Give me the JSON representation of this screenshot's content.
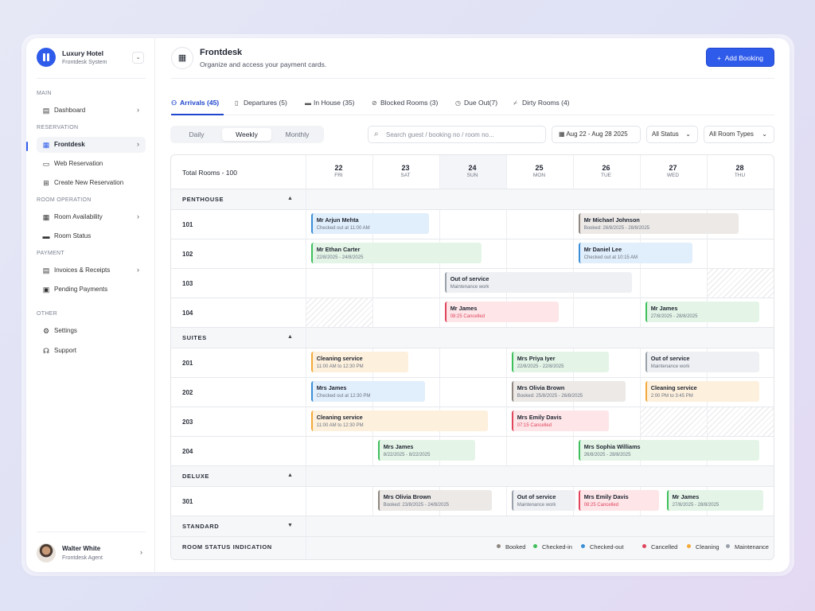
{
  "brand": {
    "name": "Luxury Hotel",
    "subtitle": "Frontdesk System"
  },
  "sidebar": {
    "sections": [
      "MAIN",
      "RESERVATION",
      "ROOM OPERATION",
      "PAYMENT",
      "OTHER"
    ],
    "items": [
      {
        "label": "Dashboard",
        "icon": "dashboard-icon"
      },
      {
        "label": "Frontdesk",
        "icon": "calendar-icon",
        "active": true
      },
      {
        "label": "Web Reservation",
        "icon": "monitor-icon"
      },
      {
        "label": "Create New Reservation",
        "icon": "plus-square-icon"
      },
      {
        "label": "Room Availability",
        "icon": "grid-icon"
      },
      {
        "label": "Room Status",
        "icon": "bed-icon"
      },
      {
        "label": "Invoices & Receipts",
        "icon": "invoice-icon"
      },
      {
        "label": "Pending Payments",
        "icon": "payment-icon"
      },
      {
        "label": "Settings",
        "icon": "gear-icon"
      },
      {
        "label": "Support",
        "icon": "headset-icon"
      }
    ]
  },
  "user": {
    "name": "Walter White",
    "role": "Frontdesk Agent"
  },
  "header": {
    "title": "Frontdesk",
    "subtitle": "Organize and access your payment cards.",
    "add_button": "Add Booking"
  },
  "tabs": [
    {
      "label": "Arrivals (45)",
      "icon": "person-icon",
      "active": true
    },
    {
      "label": "Departures (5)",
      "icon": "door-icon"
    },
    {
      "label": "In House (35)",
      "icon": "bed-icon"
    },
    {
      "label": "Blocked Rooms (3)",
      "icon": "block-icon"
    },
    {
      "label": "Due Out(7)",
      "icon": "clock-icon"
    },
    {
      "label": "Dirty Rooms (4)",
      "icon": "broom-icon"
    }
  ],
  "view": {
    "options": [
      "Daily",
      "Weekly",
      "Monthly"
    ],
    "selected": "Weekly"
  },
  "search": {
    "placeholder": "Search guest / booking no / room no..."
  },
  "filters": {
    "date_range": "Aug 22 - Aug 28 2025",
    "status": "All Status",
    "room_type": "All Room Types"
  },
  "grid": {
    "total": "Total Rooms - 100",
    "days": [
      {
        "num": "22",
        "wd": "FRI"
      },
      {
        "num": "23",
        "wd": "SAT"
      },
      {
        "num": "24",
        "wd": "SUN",
        "today": true
      },
      {
        "num": "25",
        "wd": "MON"
      },
      {
        "num": "26",
        "wd": "TUE"
      },
      {
        "num": "27",
        "wd": "WED"
      },
      {
        "num": "28",
        "wd": "THU"
      }
    ],
    "groups": [
      {
        "name": "PENTHOUSE",
        "toggle": "▲",
        "rooms": [
          {
            "no": "101",
            "bookings": [
              {
                "name": "Mr Arjun Mehta",
                "sub": "Checked out at 11:00 AM",
                "status": "checkedout"
              },
              {
                "name": "Mr Michael Johnson",
                "sub": "Booked: 26/8/2025 - 28/8/2025",
                "status": "booked"
              }
            ]
          },
          {
            "no": "102",
            "bookings": [
              {
                "name": "Mr Ethan Carter",
                "sub": "22/8/2025 - 24/8/2025",
                "status": "checkedin"
              },
              {
                "name": "Mr Daniel Lee",
                "sub": "Checked out at 10:15 AM",
                "status": "checkedout"
              }
            ]
          },
          {
            "no": "103",
            "bookings": [
              {
                "name": "Out of service",
                "sub": "Maintenance work",
                "status": "maintenance"
              }
            ]
          },
          {
            "no": "104",
            "bookings": [
              {
                "name": "Mr James",
                "sub": "08:25 Cancelled",
                "status": "cancelled"
              },
              {
                "name": "Mr James",
                "sub": "27/8/2025 - 28/8/2025",
                "status": "checkedin"
              }
            ]
          }
        ]
      },
      {
        "name": "SUITES",
        "toggle": "▲",
        "rooms": [
          {
            "no": "201",
            "bookings": [
              {
                "name": "Cleaning service",
                "sub": "11:00 AM to 12:30 PM",
                "status": "cleaning"
              },
              {
                "name": "Mrs Priya Iyer",
                "sub": "22/8/2025 - 22/8/2025",
                "status": "checkedin"
              },
              {
                "name": "Out of service",
                "sub": "Maintenance work",
                "status": "maintenance"
              }
            ]
          },
          {
            "no": "202",
            "bookings": [
              {
                "name": "Mrs James",
                "sub": "Checked out at 12:30 PM",
                "status": "checkedout"
              },
              {
                "name": "Mrs Olivia Brown",
                "sub": "Booked: 25/8/2025 - 26/8/2025",
                "status": "booked"
              },
              {
                "name": "Cleaning service",
                "sub": "2:00 PM to 3:45 PM",
                "status": "cleaning"
              }
            ]
          },
          {
            "no": "203",
            "bookings": [
              {
                "name": "Cleaning service",
                "sub": "11:00 AM to 12:30 PM",
                "status": "cleaning"
              },
              {
                "name": "Mrs Emily Davis",
                "sub": "07:15 Cancelled",
                "status": "cancelled"
              }
            ]
          },
          {
            "no": "204",
            "bookings": [
              {
                "name": "Mrs James",
                "sub": "8/22/2025 - 8/22/2025",
                "status": "checkedin"
              },
              {
                "name": "Mrs Sophia Williams",
                "sub": "26/8/2025 - 28/8/2025",
                "status": "checkedin"
              }
            ]
          }
        ]
      },
      {
        "name": "DELUXE",
        "toggle": "▲",
        "rooms": [
          {
            "no": "301",
            "bookings": [
              {
                "name": "Mrs Olivia Brown",
                "sub": "Booked: 23/8/2025 - 24/8/2025",
                "status": "booked"
              },
              {
                "name": "Out of service",
                "sub": "Maintenance work",
                "status": "maintenance"
              },
              {
                "name": "Mrs Emily Davis",
                "sub": "08:25 Cancelled",
                "status": "cancelled"
              },
              {
                "name": "Mr James",
                "sub": "27/8/2025 - 28/8/2025",
                "status": "checkedin"
              }
            ]
          }
        ]
      },
      {
        "name": "STANDARD",
        "toggle": "▼",
        "rooms": []
      }
    ],
    "legend": {
      "title": "ROOM STATUS INDICATION",
      "items": [
        {
          "label": "Booked",
          "color": "#8f8780"
        },
        {
          "label": "Checked-in",
          "color": "#3fbf5b"
        },
        {
          "label": "Checked-out",
          "color": "#3b8fd6"
        },
        {
          "label": "Cancelled",
          "color": "#e0455c"
        },
        {
          "label": "Cleaning",
          "color": "#f3a93a"
        },
        {
          "label": "Maintenance",
          "color": "#9aa1ab"
        }
      ]
    }
  },
  "colors": {
    "accent": "#2f5bea"
  }
}
